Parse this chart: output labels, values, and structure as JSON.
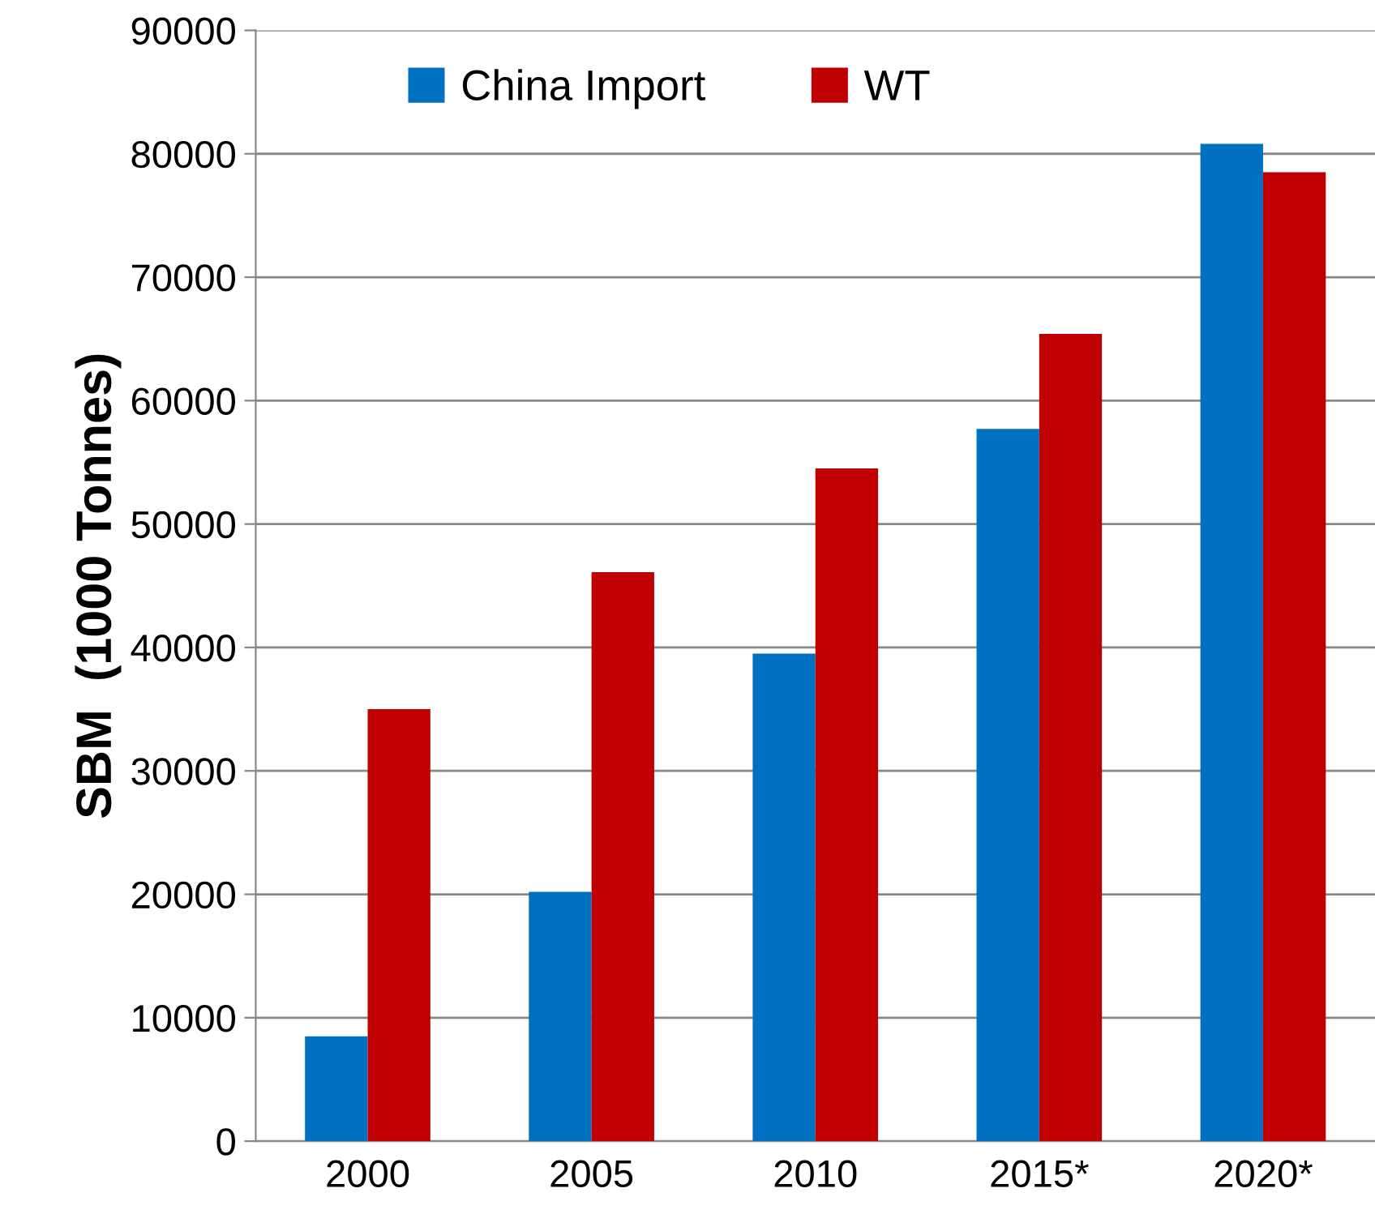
{
  "chart_data": {
    "type": "bar",
    "ylabel": "SBM  (1000 Tonnes)",
    "categories": [
      "2000",
      "2005",
      "2010",
      "2015*",
      "2020*"
    ],
    "series": [
      {
        "name": "China Import",
        "color": "#0070c0",
        "values": [
          8500,
          20200,
          39500,
          57700,
          80800
        ]
      },
      {
        "name": "WT",
        "color": "#c00000",
        "values": [
          35000,
          46100,
          54500,
          65400,
          78500
        ]
      }
    ],
    "ylim": [
      0,
      90000
    ],
    "yticks": [
      0,
      10000,
      20000,
      30000,
      40000,
      50000,
      60000,
      70000,
      80000,
      90000
    ],
    "grid": "y",
    "legend": "top"
  }
}
